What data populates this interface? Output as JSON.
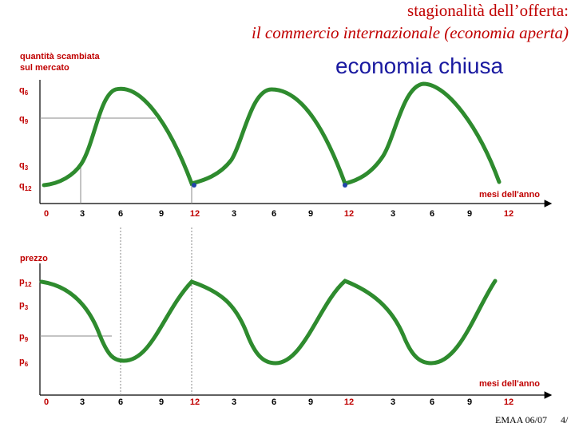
{
  "header": {
    "title_line1": "stagionalità dell’offerta:",
    "title_line2": "il commercio internazionale (economia aperta)"
  },
  "subtitle": "economia chiusa",
  "top_chart": {
    "y_label_line1": "quantità scambiata",
    "y_label_line2": "sul mercato",
    "y_labels": [
      {
        "base": "q",
        "sub": "6"
      },
      {
        "base": "q",
        "sub": "9"
      },
      {
        "base": "q",
        "sub": "3"
      },
      {
        "base": "q",
        "sub": "12"
      }
    ],
    "x_label": "mesi dell'anno",
    "x_ticks": [
      "0",
      "3",
      "6",
      "9",
      "12",
      "3",
      "6",
      "9",
      "12",
      "3",
      "6",
      "9",
      "12"
    ]
  },
  "bottom_chart": {
    "y_label": "prezzo",
    "y_labels": [
      {
        "base": "p",
        "sub": "12"
      },
      {
        "base": "p",
        "sub": "3"
      },
      {
        "base": "p",
        "sub": "9"
      },
      {
        "base": "p",
        "sub": "6"
      }
    ],
    "x_label": "mesi dell'anno",
    "x_ticks": [
      "0",
      "3",
      "6",
      "9",
      "12",
      "3",
      "6",
      "9",
      "12",
      "3",
      "6",
      "9",
      "12"
    ]
  },
  "footer": {
    "course": "EMAA 06/07",
    "page": "4/"
  }
}
